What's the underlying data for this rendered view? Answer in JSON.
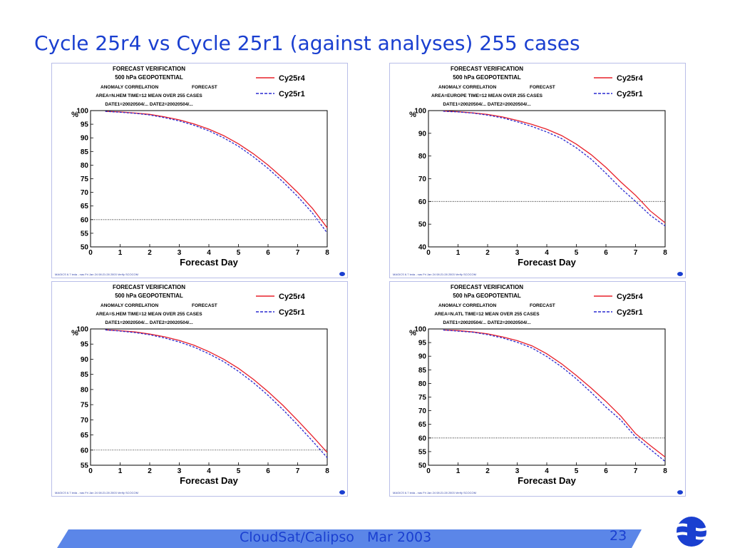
{
  "slide": {
    "title": "Cycle 25r4 vs Cycle 25r1 (against analyses) 255 cases",
    "footer": "CloudSat/Calipso   Mar 2003",
    "page_number": "23",
    "logo_icon": "ecmwf-logo-icon",
    "accent_color": "#1a3fd0"
  },
  "chart_common": {
    "header_line1": "FORECAST VERIFICATION",
    "header_line2": "500 hPa GEOPOTENTIAL",
    "header_line3_left": "ANOMALY CORRELATION",
    "header_line3_right": "FORECAST",
    "header_line5": "DATE1=20020504/... DATE2=20020504/...",
    "xlabel": "Forecast Day",
    "ylabel": "%",
    "credit": "MAGICS 6.7 ieda - nas Fri Jan 24 08:21:28 2003 Verify SCOCOM",
    "legend": [
      {
        "name": "Cy25r4",
        "color": "#e8202a",
        "style": "solid"
      },
      {
        "name": "Cy25r1",
        "color": "#2a2ad0",
        "style": "dashed"
      }
    ]
  },
  "chart_data": [
    {
      "type": "line",
      "area_line": "AREA=N.HEM   TIME=12   MEAN OVER 255 CASES",
      "xlim": [
        0,
        8
      ],
      "ylim": [
        50,
        100
      ],
      "xticks": [
        0,
        1,
        2,
        3,
        4,
        5,
        6,
        7,
        8
      ],
      "yticks": [
        50,
        55,
        60,
        65,
        70,
        75,
        80,
        85,
        90,
        95,
        100
      ],
      "reference_line": 60,
      "x": [
        0.5,
        1,
        1.5,
        2,
        2.5,
        3,
        3.5,
        4,
        4.5,
        5,
        5.5,
        6,
        6.5,
        7,
        7.5,
        8
      ],
      "series": [
        {
          "name": "Cy25r4",
          "values": [
            99.7,
            99.5,
            99.1,
            98.6,
            97.7,
            96.6,
            95.1,
            93.2,
            90.8,
            87.8,
            84.2,
            80.0,
            75.2,
            70.0,
            64.1,
            57.0
          ]
        },
        {
          "name": "Cy25r1",
          "values": [
            99.7,
            99.4,
            99.0,
            98.4,
            97.4,
            96.2,
            94.6,
            92.6,
            90.0,
            86.9,
            83.1,
            78.8,
            73.9,
            68.5,
            62.4,
            55.1
          ]
        }
      ]
    },
    {
      "type": "line",
      "area_line": "AREA=EUROPE   TIME=12   MEAN OVER 255 CASES",
      "xlim": [
        0,
        8
      ],
      "ylim": [
        40,
        100
      ],
      "xticks": [
        0,
        1,
        2,
        3,
        4,
        5,
        6,
        7,
        8
      ],
      "yticks": [
        40,
        50,
        60,
        70,
        80,
        90,
        100
      ],
      "reference_line": 60,
      "x": [
        0.5,
        1,
        1.5,
        2,
        2.5,
        3,
        3.5,
        4,
        4.5,
        5,
        5.5,
        6,
        6.5,
        7,
        7.5,
        8
      ],
      "series": [
        {
          "name": "Cy25r4",
          "values": [
            99.8,
            99.5,
            99.0,
            98.3,
            97.2,
            95.7,
            93.9,
            91.8,
            89.0,
            85.2,
            80.6,
            75.0,
            68.6,
            62.7,
            55.8,
            50.6
          ]
        },
        {
          "name": "Cy25r1",
          "values": [
            99.7,
            99.4,
            98.9,
            98.0,
            96.8,
            95.1,
            93.0,
            90.6,
            87.7,
            83.6,
            78.6,
            72.4,
            65.8,
            60.0,
            53.9,
            49.2
          ]
        }
      ]
    },
    {
      "type": "line",
      "area_line": "AREA=S.HEM   TIME=12   MEAN OVER 255 CASES",
      "xlim": [
        0,
        8
      ],
      "ylim": [
        55,
        100
      ],
      "xticks": [
        0,
        1,
        2,
        3,
        4,
        5,
        6,
        7,
        8
      ],
      "yticks": [
        55,
        60,
        65,
        70,
        75,
        80,
        85,
        90,
        95,
        100
      ],
      "reference_line": 60,
      "x": [
        0.5,
        1,
        1.5,
        2,
        2.5,
        3,
        3.5,
        4,
        4.5,
        5,
        5.5,
        6,
        6.5,
        7,
        7.5,
        8
      ],
      "series": [
        {
          "name": "Cy25r4",
          "values": [
            99.7,
            99.4,
            99.0,
            98.3,
            97.4,
            96.2,
            94.6,
            92.5,
            90.0,
            87.0,
            83.4,
            79.3,
            74.8,
            69.8,
            64.6,
            59.2
          ]
        },
        {
          "name": "Cy25r1",
          "values": [
            99.7,
            99.3,
            98.8,
            98.1,
            97.0,
            95.7,
            94.0,
            91.8,
            89.2,
            86.0,
            82.3,
            78.1,
            73.4,
            68.3,
            63.0,
            57.5
          ]
        }
      ]
    },
    {
      "type": "line",
      "area_line": "AREA=N.ATL   TIME=12   MEAN OVER 255 CASES",
      "xlim": [
        0,
        8
      ],
      "ylim": [
        50,
        100
      ],
      "xticks": [
        0,
        1,
        2,
        3,
        4,
        5,
        6,
        7,
        8
      ],
      "yticks": [
        50,
        55,
        60,
        65,
        70,
        75,
        80,
        85,
        90,
        95,
        100
      ],
      "reference_line": 60,
      "x": [
        0.5,
        1,
        1.5,
        2,
        2.5,
        3,
        3.5,
        4,
        4.5,
        5,
        5.5,
        6,
        6.5,
        7,
        7.5,
        8
      ],
      "series": [
        {
          "name": "Cy25r4",
          "values": [
            99.6,
            99.4,
            98.9,
            98.2,
            97.1,
            95.7,
            93.8,
            90.9,
            87.2,
            82.9,
            78.3,
            73.4,
            68.0,
            61.6,
            57.2,
            53.0
          ]
        },
        {
          "name": "Cy25r1",
          "values": [
            99.6,
            99.2,
            98.8,
            97.9,
            96.7,
            95.1,
            93.0,
            89.9,
            86.1,
            81.7,
            76.7,
            71.3,
            66.6,
            60.4,
            55.8,
            51.4
          ]
        }
      ]
    }
  ]
}
